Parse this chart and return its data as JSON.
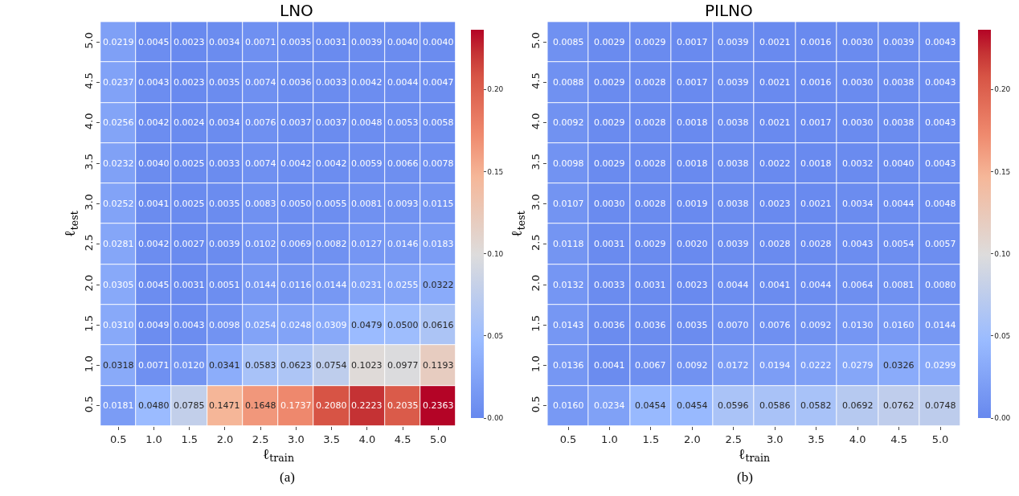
{
  "chart_data": [
    {
      "type": "heatmap",
      "title": "LNO",
      "xlabel": "ℓ$_{train}$",
      "ylabel": "ℓ$_{test}$",
      "categories": [
        "0.5",
        "1.0",
        "1.5",
        "2.0",
        "2.5",
        "3.0",
        "3.5",
        "4.0",
        "4.5",
        "5.0"
      ],
      "y_categories": [
        "5.0",
        "4.5",
        "4.0",
        "3.5",
        "3.0",
        "2.5",
        "2.0",
        "1.5",
        "1.0",
        "0.5"
      ],
      "cells": [
        [
          0.0219,
          0.0045,
          0.0023,
          0.0034,
          0.0071,
          0.0035,
          0.0031,
          0.0039,
          0.004,
          0.004
        ],
        [
          0.0237,
          0.0043,
          0.0023,
          0.0035,
          0.0074,
          0.0036,
          0.0033,
          0.0042,
          0.0044,
          0.0047
        ],
        [
          0.0256,
          0.0042,
          0.0024,
          0.0034,
          0.0076,
          0.0037,
          0.0037,
          0.0048,
          0.0053,
          0.0058
        ],
        [
          0.0232,
          0.004,
          0.0025,
          0.0033,
          0.0074,
          0.0042,
          0.0042,
          0.0059,
          0.0066,
          0.0078
        ],
        [
          0.0252,
          0.0041,
          0.0025,
          0.0035,
          0.0083,
          0.005,
          0.0055,
          0.0081,
          0.0093,
          0.0115
        ],
        [
          0.0281,
          0.0042,
          0.0027,
          0.0039,
          0.0102,
          0.0069,
          0.0082,
          0.0127,
          0.0146,
          0.0183
        ],
        [
          0.0305,
          0.0045,
          0.0031,
          0.0051,
          0.0144,
          0.0116,
          0.0144,
          0.0231,
          0.0255,
          0.0322
        ],
        [
          0.031,
          0.0049,
          0.0043,
          0.0098,
          0.0254,
          0.0248,
          0.0309,
          0.0479,
          0.05,
          0.0616
        ],
        [
          0.0318,
          0.0071,
          0.012,
          0.0341,
          0.0583,
          0.0623,
          0.0754,
          0.1023,
          0.0977,
          0.1193
        ],
        [
          0.0181,
          0.048,
          0.0785,
          0.1471,
          0.1648,
          0.1737,
          0.208,
          0.2223,
          0.2035,
          0.2363
        ]
      ],
      "cell_labels": [
        [
          "0.0219",
          "0.0045",
          "0.0023",
          "0.0034",
          "0.0071",
          "0.0035",
          "0.0031",
          "0.0039",
          "0.0040",
          "0.0040"
        ],
        [
          "0.0237",
          "0.0043",
          "0.0023",
          "0.0035",
          "0.0074",
          "0.0036",
          "0.0033",
          "0.0042",
          "0.0044",
          "0.0047"
        ],
        [
          "0.0256",
          "0.0042",
          "0.0024",
          "0.0034",
          "0.0076",
          "0.0037",
          "0.0037",
          "0.0048",
          "0.0053",
          "0.0058"
        ],
        [
          "0.0232",
          "0.0040",
          "0.0025",
          "0.0033",
          "0.0074",
          "0.0042",
          "0.0042",
          "0.0059",
          "0.0066",
          "0.0078"
        ],
        [
          "0.0252",
          "0.0041",
          "0.0025",
          "0.0035",
          "0.0083",
          "0.0050",
          "0.0055",
          "0.0081",
          "0.0093",
          "0.0115"
        ],
        [
          "0.0281",
          "0.0042",
          "0.0027",
          "0.0039",
          "0.0102",
          "0.0069",
          "0.0082",
          "0.0127",
          "0.0146",
          "0.0183"
        ],
        [
          "0.0305",
          "0.0045",
          "0.0031",
          "0.0051",
          "0.0144",
          "0.0116",
          "0.0144",
          "0.0231",
          "0.0255",
          "0.0322"
        ],
        [
          "0.0310",
          "0.0049",
          "0.0043",
          "0.0098",
          "0.0254",
          "0.0248",
          "0.0309",
          "0.0479",
          "0.0500",
          "0.0616"
        ],
        [
          "0.0318",
          "0.0071",
          "0.0120",
          "0.0341",
          "0.0583",
          "0.0623",
          "0.0754",
          "0.1023",
          "0.0977",
          "0.1193"
        ],
        [
          "0.0181",
          "0.0480",
          "0.0785",
          "0.1471",
          "0.1648",
          "0.1737",
          "0.2080",
          "0.2223",
          "0.2035",
          "0.2363"
        ]
      ],
      "clim": [
        0,
        0.2363
      ],
      "cticks": [
        {
          "value": 0,
          "label": "0.00"
        },
        {
          "value": 0.05,
          "label": "0.05"
        },
        {
          "value": 0.1,
          "label": "0.10"
        },
        {
          "value": 0.15,
          "label": "0.15"
        },
        {
          "value": 0.2,
          "label": "0.20"
        }
      ],
      "annotations": [
        "(a)"
      ]
    },
    {
      "type": "heatmap",
      "title": "PILNO",
      "xlabel": "ℓ$_{train}$",
      "ylabel": "ℓ$_{test}$",
      "categories": [
        "0.5",
        "1.0",
        "1.5",
        "2.0",
        "2.5",
        "3.0",
        "3.5",
        "4.0",
        "4.5",
        "5.0"
      ],
      "y_categories": [
        "5.0",
        "4.5",
        "4.0",
        "3.5",
        "3.0",
        "2.5",
        "2.0",
        "1.5",
        "1.0",
        "0.5"
      ],
      "cells": [
        [
          0.0085,
          0.0029,
          0.0029,
          0.0017,
          0.0039,
          0.0021,
          0.0016,
          0.003,
          0.0039,
          0.0043
        ],
        [
          0.0088,
          0.0029,
          0.0028,
          0.0017,
          0.0039,
          0.0021,
          0.0016,
          0.003,
          0.0038,
          0.0043
        ],
        [
          0.0092,
          0.0029,
          0.0028,
          0.0018,
          0.0038,
          0.0021,
          0.0017,
          0.003,
          0.0038,
          0.0043
        ],
        [
          0.0098,
          0.0029,
          0.0028,
          0.0018,
          0.0038,
          0.0022,
          0.0018,
          0.0032,
          0.004,
          0.0043
        ],
        [
          0.0107,
          0.003,
          0.0028,
          0.0019,
          0.0038,
          0.0023,
          0.0021,
          0.0034,
          0.0044,
          0.0048
        ],
        [
          0.0118,
          0.0031,
          0.0029,
          0.002,
          0.0039,
          0.0028,
          0.0028,
          0.0043,
          0.0054,
          0.0057
        ],
        [
          0.0132,
          0.0033,
          0.0031,
          0.0023,
          0.0044,
          0.0041,
          0.0044,
          0.0064,
          0.0081,
          0.008
        ],
        [
          0.0143,
          0.0036,
          0.0036,
          0.0035,
          0.007,
          0.0076,
          0.0092,
          0.013,
          0.016,
          0.0144
        ],
        [
          0.0136,
          0.0041,
          0.0067,
          0.0092,
          0.0172,
          0.0194,
          0.0222,
          0.0279,
          0.0326,
          0.0299
        ],
        [
          0.016,
          0.0234,
          0.0454,
          0.0454,
          0.0596,
          0.0586,
          0.0582,
          0.0692,
          0.0762,
          0.0748
        ]
      ],
      "cell_labels": [
        [
          "0.0085",
          "0.0029",
          "0.0029",
          "0.0017",
          "0.0039",
          "0.0021",
          "0.0016",
          "0.0030",
          "0.0039",
          "0.0043"
        ],
        [
          "0.0088",
          "0.0029",
          "0.0028",
          "0.0017",
          "0.0039",
          "0.0021",
          "0.0016",
          "0.0030",
          "0.0038",
          "0.0043"
        ],
        [
          "0.0092",
          "0.0029",
          "0.0028",
          "0.0018",
          "0.0038",
          "0.0021",
          "0.0017",
          "0.0030",
          "0.0038",
          "0.0043"
        ],
        [
          "0.0098",
          "0.0029",
          "0.0028",
          "0.0018",
          "0.0038",
          "0.0022",
          "0.0018",
          "0.0032",
          "0.0040",
          "0.0043"
        ],
        [
          "0.0107",
          "0.0030",
          "0.0028",
          "0.0019",
          "0.0038",
          "0.0023",
          "0.0021",
          "0.0034",
          "0.0044",
          "0.0048"
        ],
        [
          "0.0118",
          "0.0031",
          "0.0029",
          "0.0020",
          "0.0039",
          "0.0028",
          "0.0028",
          "0.0043",
          "0.0054",
          "0.0057"
        ],
        [
          "0.0132",
          "0.0033",
          "0.0031",
          "0.0023",
          "0.0044",
          "0.0041",
          "0.0044",
          "0.0064",
          "0.0081",
          "0.0080"
        ],
        [
          "0.0143",
          "0.0036",
          "0.0036",
          "0.0035",
          "0.0070",
          "0.0076",
          "0.0092",
          "0.0130",
          "0.0160",
          "0.0144"
        ],
        [
          "0.0136",
          "0.0041",
          "0.0067",
          "0.0092",
          "0.0172",
          "0.0194",
          "0.0222",
          "0.0279",
          "0.0326",
          "0.0299"
        ],
        [
          "0.0160",
          "0.0234",
          "0.0454",
          "0.0454",
          "0.0596",
          "0.0586",
          "0.0582",
          "0.0692",
          "0.0762",
          "0.0748"
        ]
      ],
      "clim": [
        0,
        0.2363
      ],
      "cticks": [
        {
          "value": 0,
          "label": "0.00"
        },
        {
          "value": 0.05,
          "label": "0.05"
        },
        {
          "value": 0.1,
          "label": "0.10"
        },
        {
          "value": 0.15,
          "label": "0.15"
        },
        {
          "value": 0.2,
          "label": "0.20"
        }
      ],
      "annotations": [
        "(b)"
      ]
    }
  ]
}
